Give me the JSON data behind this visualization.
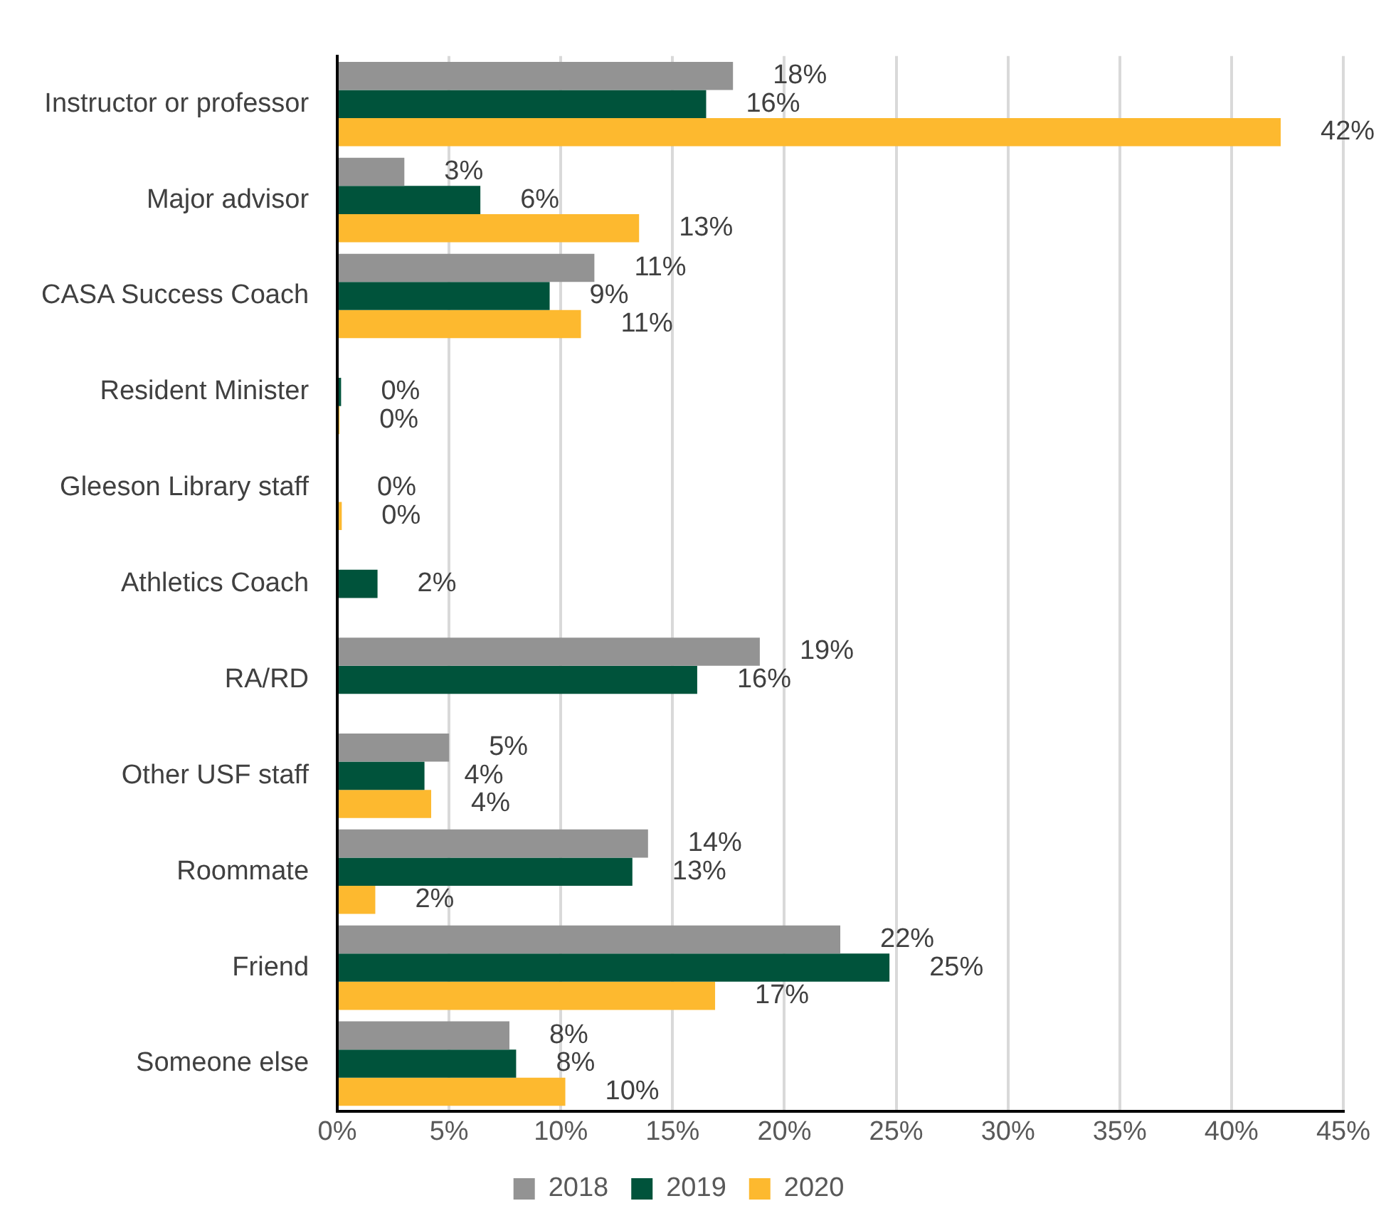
{
  "chart_data": {
    "type": "bar",
    "orientation": "horizontal",
    "categories": [
      "Instructor or professor",
      "Major advisor",
      "CASA Success Coach",
      "Resident Minister",
      "Gleeson Library staff",
      "Athletics Coach",
      "RA/RD",
      "Other USF staff",
      "Roommate",
      "Friend",
      "Someone else"
    ],
    "series": [
      {
        "name": "2018",
        "color": "#939393",
        "values": [
          17.7,
          3.0,
          11.5,
          null,
          null,
          null,
          18.9,
          5.0,
          13.9,
          22.5,
          7.7
        ],
        "value_labels": [
          "18%",
          "3%",
          "11%",
          null,
          null,
          null,
          "19%",
          "5%",
          "14%",
          "22%",
          "8%"
        ]
      },
      {
        "name": "2019",
        "color": "#00533b",
        "values": [
          16.5,
          6.4,
          9.5,
          0.17,
          0,
          1.8,
          16.1,
          3.9,
          13.2,
          24.7,
          8.0
        ],
        "value_labels": [
          "16%",
          "6%",
          "9%",
          "0%",
          "0%",
          "2%",
          "16%",
          "4%",
          "13%",
          "25%",
          "8%"
        ]
      },
      {
        "name": "2020",
        "color": "#fdb92f",
        "values": [
          42.2,
          13.5,
          10.9,
          0.1,
          0.2,
          null,
          null,
          4.2,
          1.7,
          16.9,
          10.2
        ],
        "value_labels": [
          "42%",
          "13%",
          "11%",
          "0%",
          "0%",
          null,
          null,
          "4%",
          "2%",
          "17%",
          "10%"
        ]
      }
    ],
    "xlim": [
      0,
      45
    ],
    "xticks": [
      {
        "value": 0,
        "label": "0%"
      },
      {
        "value": 5,
        "label": "5%"
      },
      {
        "value": 10,
        "label": "10%"
      },
      {
        "value": 15,
        "label": "15%"
      },
      {
        "value": 20,
        "label": "20%"
      },
      {
        "value": 25,
        "label": "25%"
      },
      {
        "value": 30,
        "label": "30%"
      },
      {
        "value": 35,
        "label": "35%"
      },
      {
        "value": 40,
        "label": "40%"
      },
      {
        "value": 45,
        "label": "45%"
      }
    ],
    "grid": "x",
    "legend": "bottom"
  }
}
